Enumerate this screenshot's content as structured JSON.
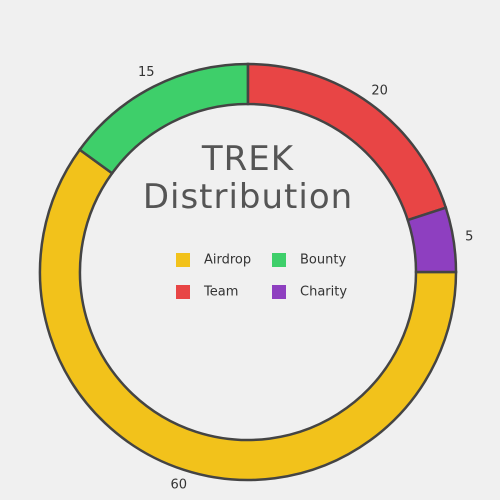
{
  "chart_data": {
    "type": "donut",
    "title": "TREK Distribution",
    "categories": [
      "Airdrop",
      "Bounty",
      "Team",
      "Charity"
    ],
    "values": [
      60,
      15,
      20,
      5
    ],
    "colors": [
      "#f2c21b",
      "#3ecf6a",
      "#e84545",
      "#8e3fc0"
    ],
    "start_angle": 90,
    "legend": "center"
  }
}
